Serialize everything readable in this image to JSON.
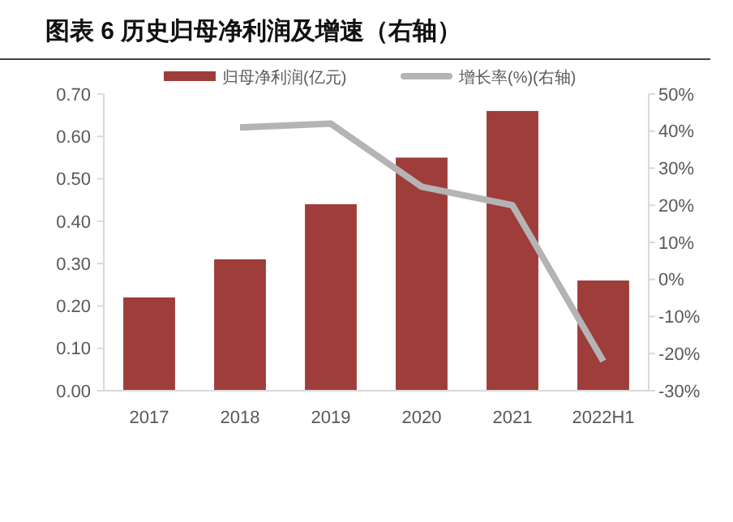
{
  "chart_data": {
    "type": "bar",
    "title": "图表 6 历史归母净利润及增速（右轴）",
    "categories": [
      "2017",
      "2018",
      "2019",
      "2020",
      "2021",
      "2022H1"
    ],
    "series": [
      {
        "name": "归母净利润(亿元)",
        "color": "#9e3d3a",
        "values": [
          0.22,
          0.31,
          0.44,
          0.55,
          0.66,
          0.26
        ]
      },
      {
        "name": "增长率(%)(右轴)",
        "type": "line",
        "axis": "y2",
        "color": "#b4b4b4",
        "values": [
          null,
          41,
          42,
          25,
          20,
          -22
        ]
      }
    ],
    "ylim": [
      0,
      0.7
    ],
    "yticks": [
      {
        "value": 0,
        "label": "0.00"
      },
      {
        "value": 0.1,
        "label": "0.10"
      },
      {
        "value": 0.2,
        "label": "0.20"
      },
      {
        "value": 0.3,
        "label": "0.30"
      },
      {
        "value": 0.4,
        "label": "0.40"
      },
      {
        "value": 0.5,
        "label": "0.50"
      },
      {
        "value": 0.6,
        "label": "0.60"
      },
      {
        "value": 0.7,
        "label": "0.70"
      }
    ],
    "y2lim": [
      -30,
      50
    ],
    "y2ticks": [
      {
        "value": -30,
        "label": "-30%"
      },
      {
        "value": -20,
        "label": "-20%"
      },
      {
        "value": -10,
        "label": "-10%"
      },
      {
        "value": 0,
        "label": "0%"
      },
      {
        "value": 10,
        "label": "10%"
      },
      {
        "value": 20,
        "label": "20%"
      },
      {
        "value": 30,
        "label": "30%"
      },
      {
        "value": 40,
        "label": "40%"
      },
      {
        "value": 50,
        "label": "50%"
      }
    ],
    "legend": "top",
    "grid": false,
    "marker": "none",
    "line_style": "solid"
  }
}
